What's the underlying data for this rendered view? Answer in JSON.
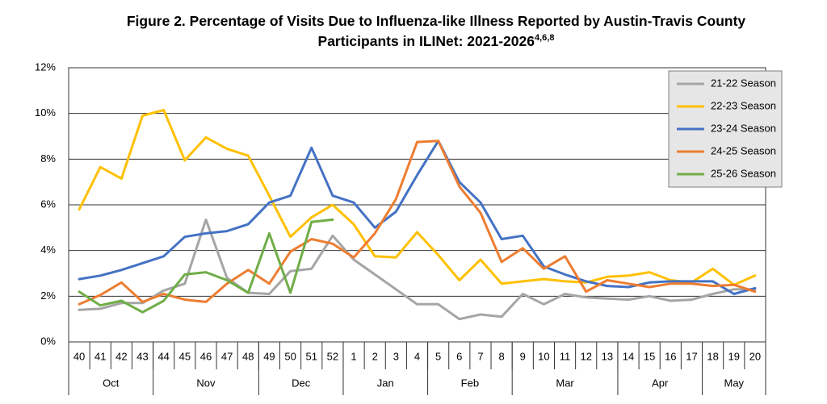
{
  "chart_data": {
    "type": "line",
    "title": "Figure 2. Percentage of Visits Due to Influenza-like Illness Reported by Austin-Travis County Participants in ILINet: 2021-2026",
    "title_superscript": "4,6,8",
    "categories": [
      "40",
      "41",
      "42",
      "43",
      "44",
      "45",
      "46",
      "47",
      "48",
      "49",
      "50",
      "51",
      "52",
      "1",
      "2",
      "3",
      "4",
      "5",
      "6",
      "7",
      "8",
      "9",
      "10",
      "11",
      "12",
      "13",
      "14",
      "15",
      "16",
      "17",
      "18",
      "19",
      "20"
    ],
    "groups": [
      {
        "label": "Oct",
        "first": "40",
        "last": "43"
      },
      {
        "label": "Nov",
        "first": "44",
        "last": "48"
      },
      {
        "label": "Dec",
        "first": "49",
        "last": "52"
      },
      {
        "label": "Jan",
        "first": "1",
        "last": "4"
      },
      {
        "label": "Feb",
        "first": "5",
        "last": "8"
      },
      {
        "label": "Mar",
        "first": "9",
        "last": "13"
      },
      {
        "label": "Apr",
        "first": "14",
        "last": "17"
      },
      {
        "label": "May",
        "first": "18",
        "last": "20"
      }
    ],
    "ylim": [
      0,
      12
    ],
    "yticks": [
      {
        "value": 0,
        "label": "0%"
      },
      {
        "value": 2,
        "label": "2%"
      },
      {
        "value": 4,
        "label": "4%"
      },
      {
        "value": 6,
        "label": "6%"
      },
      {
        "value": 8,
        "label": "8%"
      },
      {
        "value": 10,
        "label": "10%"
      },
      {
        "value": 12,
        "label": "12%"
      }
    ],
    "grid": true,
    "legend": "upper right",
    "series": [
      {
        "name": "21-22 Season",
        "color": "#a5a5a5",
        "values": [
          1.4,
          1.45,
          1.7,
          1.7,
          2.25,
          2.55,
          5.35,
          2.8,
          2.15,
          2.1,
          3.1,
          3.2,
          4.65,
          3.6,
          2.95,
          2.3,
          1.65,
          1.65,
          1.0,
          1.2,
          1.1,
          2.1,
          1.65,
          2.1,
          1.95,
          1.9,
          1.85,
          2.0,
          1.8,
          1.85,
          2.1,
          2.3,
          2.3
        ]
      },
      {
        "name": "22-23 Season",
        "color": "#ffc000",
        "values": [
          5.8,
          7.65,
          7.15,
          9.9,
          10.15,
          7.95,
          8.95,
          8.45,
          8.15,
          6.4,
          4.6,
          5.45,
          6.0,
          5.15,
          3.75,
          3.7,
          4.8,
          3.8,
          2.7,
          3.6,
          2.55,
          2.65,
          2.75,
          2.65,
          2.6,
          2.85,
          2.9,
          3.05,
          2.7,
          2.6,
          3.2,
          2.5,
          2.9
        ]
      },
      {
        "name": "23-24 Season",
        "color": "#4472c4",
        "values": [
          2.75,
          2.9,
          3.15,
          3.45,
          3.75,
          4.6,
          4.75,
          4.85,
          5.15,
          6.1,
          6.4,
          8.5,
          6.4,
          6.1,
          5.0,
          5.7,
          7.3,
          8.8,
          7.0,
          6.1,
          4.5,
          4.65,
          3.3,
          2.95,
          2.65,
          2.45,
          2.4,
          2.6,
          2.65,
          2.65,
          2.65,
          2.1,
          2.35
        ]
      },
      {
        "name": "24-25 Season",
        "color": "#ed7d31",
        "values": [
          1.65,
          2.05,
          2.6,
          1.75,
          2.1,
          1.85,
          1.75,
          2.55,
          3.15,
          2.55,
          3.95,
          4.5,
          4.3,
          3.7,
          4.75,
          6.25,
          8.75,
          8.8,
          6.8,
          5.65,
          3.5,
          4.1,
          3.2,
          3.75,
          2.2,
          2.7,
          2.55,
          2.4,
          2.55,
          2.55,
          2.45,
          2.5,
          2.2
        ]
      },
      {
        "name": "25-26 Season",
        "color": "#70ad47",
        "values": [
          2.2,
          1.6,
          1.8,
          1.3,
          1.8,
          2.95,
          3.05,
          2.7,
          2.15,
          4.75,
          2.15,
          5.25,
          5.35,
          null,
          null,
          null,
          null,
          null,
          null,
          null,
          null,
          null,
          null,
          null,
          null,
          null,
          null,
          null,
          null,
          null,
          null,
          null,
          null
        ]
      }
    ]
  }
}
